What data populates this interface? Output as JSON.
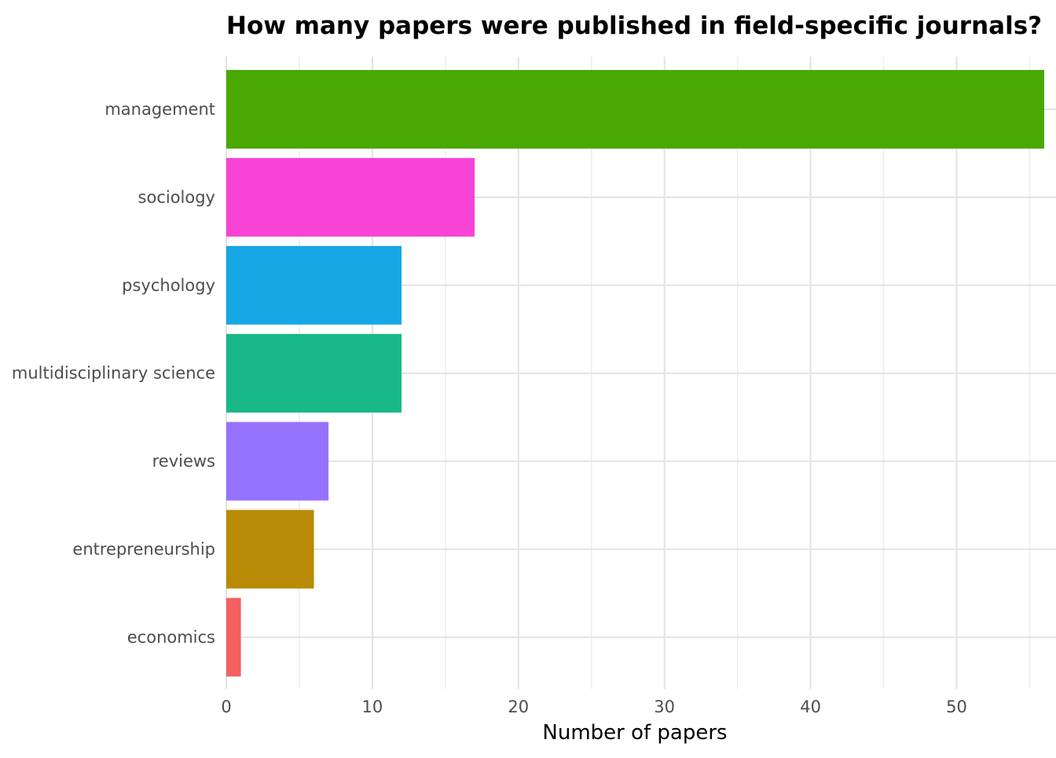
{
  "chart_data": {
    "type": "bar",
    "orientation": "horizontal",
    "title": "How many papers were published in field-specific journals?",
    "xlabel": "Number of papers",
    "ylabel": "",
    "categories": [
      "management",
      "sociology",
      "psychology",
      "multidisciplinary science",
      "reviews",
      "entrepreneurship",
      "economics"
    ],
    "values": [
      56,
      17,
      12,
      12,
      7,
      6,
      1
    ],
    "colors": [
      "#49A801",
      "#F843D4",
      "#17A7E5",
      "#18B887",
      "#9673FF",
      "#B88A06",
      "#F45F5F"
    ],
    "xlim": [
      0,
      56
    ],
    "xticks": [
      0,
      10,
      20,
      30,
      40,
      50
    ],
    "xtick_labels": [
      "0",
      "10",
      "20",
      "30",
      "40",
      "50"
    ],
    "grid": true,
    "legend": "none"
  }
}
